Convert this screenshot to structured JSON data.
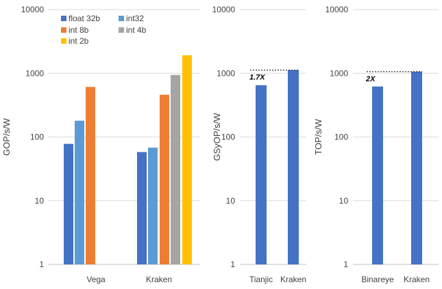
{
  "chart_data": [
    {
      "type": "bar",
      "ylabel": "GOP/s/W",
      "yscale": "log",
      "ylim": [
        1,
        10000
      ],
      "yticks": [
        "1",
        "10",
        "100",
        "1000",
        "10000"
      ],
      "grid": true,
      "legend_position": "top-left",
      "categories": [
        "Vega",
        "Kraken"
      ],
      "series": [
        {
          "name": "float 32b",
          "color": "#4472C4",
          "values": [
            78,
            58
          ]
        },
        {
          "name": "int32",
          "color": "#5B9BD5",
          "values": [
            180,
            68
          ]
        },
        {
          "name": "int 8b",
          "color": "#ED7D31",
          "values": [
            610,
            460
          ]
        },
        {
          "name": "int 4b",
          "color": "#A5A5A5",
          "values": [
            null,
            940
          ]
        },
        {
          "name": "int 2b",
          "color": "#FFC000",
          "values": [
            null,
            1920
          ]
        }
      ]
    },
    {
      "type": "bar",
      "ylabel": "GSyOP/s/W",
      "yscale": "log",
      "ylim": [
        1,
        10000
      ],
      "yticks": [
        "1",
        "10",
        "100",
        "1000",
        "10000"
      ],
      "grid": true,
      "categories": [
        "Tianjic",
        "Kraken"
      ],
      "values": [
        650,
        1120
      ],
      "color": "#4472C4",
      "annotation": "1.7X"
    },
    {
      "type": "bar",
      "ylabel": "TOP/s/W",
      "yscale": "log",
      "ylim": [
        1,
        10000
      ],
      "yticks": [
        "1",
        "10",
        "100",
        "1000",
        "10000"
      ],
      "grid": true,
      "categories": [
        "Binareye",
        "Kraken"
      ],
      "values": [
        620,
        1060
      ],
      "color": "#4472C4",
      "annotation": "2X"
    }
  ]
}
